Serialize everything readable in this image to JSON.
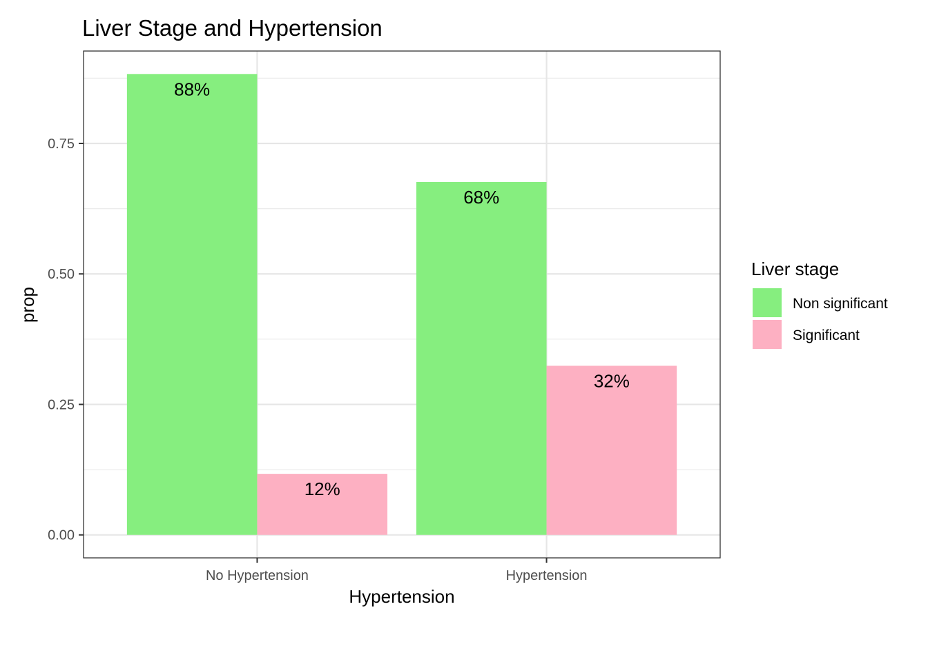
{
  "chart_data": {
    "type": "bar",
    "title": "Liver Stage and Hypertension",
    "xlabel": "Hypertension",
    "ylabel": "prop",
    "categories": [
      "No Hypertension",
      "Hypertension"
    ],
    "series": [
      {
        "name": "Non significant",
        "values": [
          0.883,
          0.676
        ],
        "labels": [
          "88%",
          "68%"
        ]
      },
      {
        "name": "Significant",
        "values": [
          0.117,
          0.324
        ],
        "labels": [
          "12%",
          "32%"
        ]
      }
    ],
    "yticks": [
      0,
      0.25,
      0.5,
      0.75
    ],
    "ytick_labels": [
      "0.00",
      "0.25",
      "0.50",
      "0.75"
    ],
    "ylim": [
      -0.044,
      0.927
    ],
    "grid": true,
    "legend": {
      "title": "Liver stage",
      "position": "right"
    }
  },
  "colors": {
    "Non significant": "#86ee7f",
    "Significant": "#fdb0c2"
  }
}
